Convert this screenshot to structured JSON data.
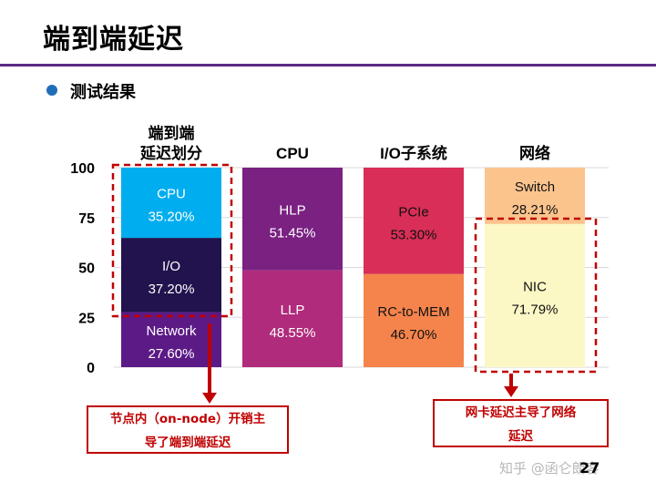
{
  "slide": {
    "title": "端到端延迟",
    "bullet": "测试结果",
    "page_number": "27",
    "watermark": "知乎 @函仑朗客"
  },
  "callouts": {
    "left_line1": "节点内（on-node）开销主",
    "left_line2": "导了端到端延迟",
    "right_line1": "网卡延迟主导了网络",
    "right_line2": "延迟"
  },
  "colors": {
    "highlight": "#c00000",
    "accent": "#5b2a86"
  },
  "chart_data": {
    "type": "bar",
    "stacked": true,
    "ylim": [
      0,
      100
    ],
    "yticks": [
      "0",
      "25",
      "50",
      "75",
      "100"
    ],
    "grid": true,
    "columns": [
      {
        "header": [
          "端到端",
          "延迟划分"
        ],
        "segments": [
          {
            "name": "Network",
            "value": 27.6,
            "label": "27.60%",
            "color": "#5c1a86",
            "text_color": "#ffffff"
          },
          {
            "name": "I/O",
            "value": 37.2,
            "label": "37.20%",
            "color": "#22124d",
            "text_color": "#ffffff"
          },
          {
            "name": "CPU",
            "value": 35.2,
            "label": "35.20%",
            "color": "#00adef",
            "text_color": "#ffffff"
          }
        ]
      },
      {
        "header": [
          "CPU"
        ],
        "segments": [
          {
            "name": "LLP",
            "value": 48.55,
            "label": "48.55%",
            "color": "#b02b7b",
            "text_color": "#ffffff"
          },
          {
            "name": "HLP",
            "value": 51.45,
            "label": "51.45%",
            "color": "#7a2182",
            "text_color": "#ffffff"
          }
        ]
      },
      {
        "header": [
          "I/O子系统"
        ],
        "segments": [
          {
            "name": "RC-to-MEM",
            "value": 46.7,
            "label": "46.70%",
            "color": "#f5844c",
            "text_color": "#111111"
          },
          {
            "name": "PCIe",
            "value": 53.3,
            "label": "53.30%",
            "color": "#d92e57",
            "text_color": "#111111"
          }
        ]
      },
      {
        "header": [
          "网络"
        ],
        "segments": [
          {
            "name": "NIC",
            "value": 71.79,
            "label": "71.79%",
            "color": "#fbf8c6",
            "text_color": "#111111"
          },
          {
            "name": "Switch",
            "value": 28.21,
            "label": "28.21%",
            "color": "#fcc48d",
            "text_color": "#111111"
          }
        ]
      }
    ]
  }
}
